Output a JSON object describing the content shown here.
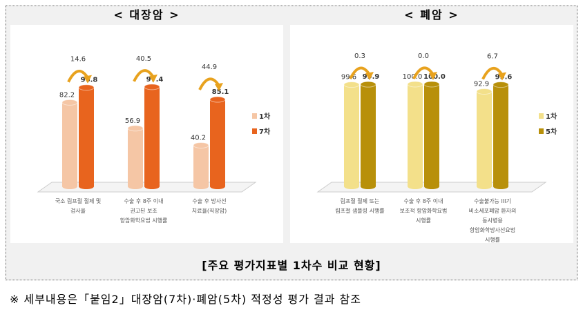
{
  "chart_data": [
    {
      "type": "bar",
      "title": "< 대장암 >",
      "categories": [
        [
          "국소 림프절 절제 및",
          "검사율"
        ],
        [
          "수술 후 8주 이내",
          "권고된 보조",
          "항암화학요법 시행률"
        ],
        [
          "수술 후 방사선",
          "치료율(직장암)"
        ]
      ],
      "series": [
        {
          "name": "1차",
          "values": [
            82.2,
            56.9,
            40.2
          ],
          "color": "#f5c6a5"
        },
        {
          "name": "7차",
          "values": [
            96.8,
            97.4,
            85.1
          ],
          "color": "#e8641e"
        }
      ],
      "differences": [
        14.6,
        40.5,
        44.9
      ],
      "ylim": [
        0,
        100
      ],
      "legend": "right"
    },
    {
      "type": "bar",
      "title": "< 폐암 >",
      "categories": [
        [
          "림프절 절제 또는",
          "림프절 샘플링 시행률"
        ],
        [
          "수술 후 8주 이내",
          "보조적 항암화학요법",
          "시행률"
        ],
        [
          "수술불가능 III기",
          "비소세포폐암 환자의",
          "동시병용",
          "항암화학방사선요법",
          "시행률"
        ]
      ],
      "series": [
        {
          "name": "1차",
          "values": [
            99.6,
            100.0,
            92.9
          ],
          "color": "#f3e08a"
        },
        {
          "name": "5차",
          "values": [
            99.9,
            100.0,
            99.6
          ],
          "color": "#b8900a"
        }
      ],
      "differences": [
        0.3,
        0.0,
        6.7
      ],
      "ylim": [
        0,
        100
      ],
      "legend": "right"
    }
  ],
  "caption": "[주요 평가지표별 1차수 비교 현황]",
  "note": "※ 세부내용은「붙임2」대장암(7차)·폐암(5차) 적정성 평가 결과 참조"
}
